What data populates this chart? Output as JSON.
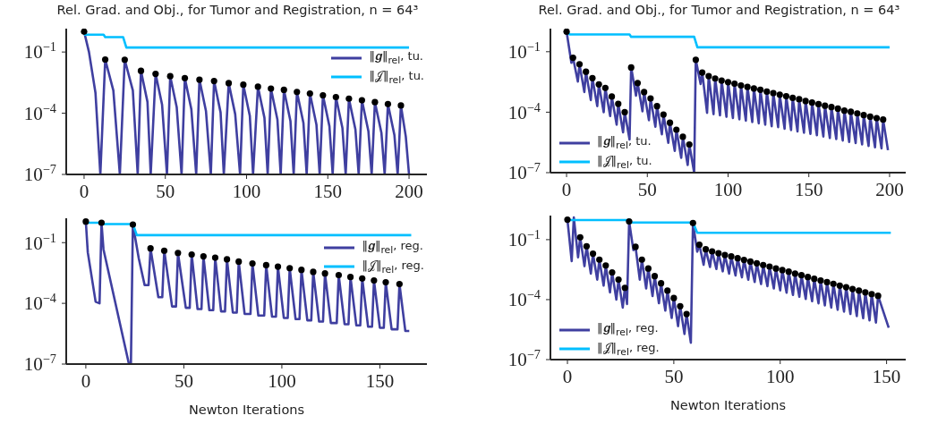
{
  "chart_data": [
    {
      "type": "line",
      "title": "Rel. Grad. and Obj., for Tumor and Registration, n = 64³",
      "xlim": [
        -11,
        211
      ],
      "xticks": [
        0,
        50,
        100,
        150,
        200
      ],
      "ylim": [
        1e-07,
        1.4
      ],
      "yticks": [
        {
          "value": 1e-07,
          "label": "10$^{−7}$"
        },
        {
          "value": 0.0001,
          "label": "10$^{−4}$"
        },
        {
          "value": 0.1,
          "label": "10$^{−1}$"
        }
      ],
      "log": "y",
      "legend": "top right",
      "series": [
        {
          "name": "‖𝒈‖$_{rel}$, tu.",
          "color": "#3f3fa0",
          "x": [
            0,
            3,
            7,
            10,
            13,
            18,
            22,
            25,
            30,
            33,
            35,
            39,
            41,
            44,
            48,
            51,
            53,
            57,
            60,
            62,
            66,
            69,
            71,
            75,
            78,
            80,
            84,
            86,
            89,
            93,
            96,
            98,
            102,
            104,
            107,
            111,
            113,
            115,
            119,
            121,
            123,
            127,
            129,
            131,
            135,
            137,
            139,
            143,
            145,
            147,
            151,
            153,
            155,
            159,
            161,
            163,
            167,
            169,
            171,
            175,
            177,
            179,
            183,
            185,
            187,
            191,
            193,
            195,
            198,
            200
          ],
          "values": [
            1,
            0.1,
            0.001,
            1e-07,
            0.043,
            0.0013,
            1e-07,
            0.042,
            0.0013,
            1e-07,
            0.012,
            0.00036,
            1e-07,
            0.0085,
            0.00026,
            1e-07,
            0.0065,
            0.0002,
            1e-07,
            0.0053,
            0.00016,
            1e-07,
            0.0044,
            0.00013,
            1e-07,
            0.0038,
            0.00011,
            1e-07,
            0.003,
            9e-05,
            1e-07,
            0.0025,
            7.5e-05,
            1e-07,
            0.002,
            6e-05,
            1e-07,
            0.0016,
            4.8e-05,
            1e-07,
            0.0014,
            4.2e-05,
            1e-07,
            0.0011,
            3.3e-05,
            1e-07,
            0.00093,
            2.8e-05,
            1e-07,
            0.00076,
            2.3e-05,
            1e-07,
            0.00062,
            1.9e-05,
            1e-07,
            0.00052,
            1.6e-05,
            1e-07,
            0.00043,
            1.3e-05,
            1e-07,
            0.00035,
            1.1e-05,
            1e-07,
            0.00028,
            8.4e-06,
            1e-07,
            0.00024,
            7.2e-06,
            1e-07
          ]
        },
        {
          "name": "‖𝒥‖$_{rel}$, tu.",
          "color": "#00bfff",
          "x": [
            0,
            12,
            13,
            24,
            26,
            200
          ],
          "values": [
            0.71,
            0.71,
            0.54,
            0.54,
            0.166,
            0.166
          ]
        },
        {
          "type": "scatter",
          "color": "#000000",
          "marker": "circle",
          "x": [
            0,
            13,
            25,
            35,
            44,
            53,
            62,
            71,
            80,
            89,
            98,
            107,
            115,
            123,
            131,
            139,
            147,
            155,
            163,
            171,
            179,
            187,
            195
          ],
          "values": [
            1,
            0.043,
            0.042,
            0.012,
            0.0085,
            0.0065,
            0.0053,
            0.0044,
            0.0038,
            0.003,
            0.0025,
            0.002,
            0.0016,
            0.0014,
            0.0011,
            0.00093,
            0.00076,
            0.00062,
            0.00052,
            0.00043,
            0.00035,
            0.00028,
            0.00024
          ]
        }
      ]
    },
    {
      "type": "line",
      "title": "Rel. Grad. and Obj., for Tumor and Registration, n = 64³",
      "xlim": [
        -10,
        210
      ],
      "xticks": [
        0,
        50,
        100,
        150,
        200
      ],
      "ylim": [
        1e-07,
        1.4
      ],
      "yticks": [
        {
          "value": 1e-07,
          "label": "10$^{−7}$"
        },
        {
          "value": 0.0001,
          "label": "10$^{−4}$"
        },
        {
          "value": 0.1,
          "label": "10$^{−1}$"
        }
      ],
      "log": "y",
      "legend": "bottom left",
      "series": [
        {
          "name": "‖𝒈‖$_{rel}$, tu.",
          "color": "#3f3fa0",
          "x": [
            0,
            3,
            4,
            7,
            8,
            11,
            12,
            15,
            16,
            19,
            20,
            23,
            24,
            27,
            28,
            31,
            32,
            35,
            36,
            39,
            40,
            43,
            44,
            47,
            48,
            51,
            52,
            55,
            56,
            59,
            60,
            63,
            64,
            67,
            68,
            71,
            72,
            75,
            76,
            79,
            80,
            83,
            84,
            87,
            88,
            91,
            92,
            95,
            96,
            99,
            100,
            103,
            104,
            107,
            108,
            111,
            112,
            115,
            116,
            119,
            120,
            123,
            124,
            127,
            128,
            131,
            132,
            135,
            136,
            139,
            140,
            143,
            144,
            147,
            148,
            151,
            152,
            155,
            156,
            159,
            160,
            163,
            164,
            167,
            168,
            171,
            172,
            175,
            176,
            179,
            180,
            183,
            184,
            187,
            188,
            191,
            192,
            195,
            196,
            199
          ],
          "values": [
            1,
            0.028,
            0.05,
            0.0033,
            0.024,
            0.001,
            0.0102,
            0.0004,
            0.0049,
            0.0002,
            0.0024,
            0.0001,
            0.0016,
            6.4e-05,
            0.0006,
            2.4e-05,
            0.00026,
            1e-05,
            0.0001,
            4.4e-06,
            0.0166,
            0.00066,
            0.0028,
            0.00011,
            0.001,
            4e-05,
            0.00048,
            1.9e-05,
            0.0002,
            8e-06,
            7.6e-05,
            3e-06,
            3e-05,
            1.2e-06,
            1.35e-05,
            5.4e-07,
            6e-06,
            2.4e-07,
            2.5e-06,
            1e-07,
            0.04,
            0.0025,
            0.0093,
            9.3e-05,
            0.0062,
            8e-05,
            0.0047,
            6.9e-05,
            0.0037,
            5.9e-05,
            0.0031,
            5.1e-05,
            0.0026,
            4.4e-05,
            0.0021,
            3.8e-05,
            0.0018,
            3.2e-05,
            0.0015,
            2.8e-05,
            0.0013,
            2.4e-05,
            0.00105,
            2e-05,
            0.00089,
            1.8e-05,
            0.00074,
            1.5e-05,
            0.00062,
            1.3e-05,
            0.00051,
            1.1e-05,
            0.00044,
            9.6e-06,
            0.00036,
            8.3e-06,
            0.0003,
            7.1e-06,
            0.00025,
            6.2e-06,
            0.00021,
            5.2e-06,
            0.00018,
            4.6e-06,
            0.00015,
            3.9e-06,
            0.00012,
            3.3e-06,
            0.000105,
            2.9e-06,
            8.7e-05,
            2.5e-06,
            7.2e-05,
            2.1e-06,
            6e-05,
            1.8e-06,
            5.1e-05,
            1.6e-06,
            4.3e-05,
            1.3e-06
          ]
        },
        {
          "name": "‖𝒥‖$_{rel}$, tu.",
          "color": "#00bfff",
          "x": [
            0,
            2,
            39,
            40,
            79,
            81,
            200
          ],
          "values": [
            1,
            0.72,
            0.72,
            0.55,
            0.55,
            0.166,
            0.166
          ]
        },
        {
          "type": "scatter",
          "color": "#000000",
          "marker": "circle",
          "x": [
            0,
            4,
            8,
            12,
            16,
            20,
            24,
            28,
            32,
            36,
            40,
            44,
            48,
            52,
            56,
            60,
            64,
            68,
            72,
            76,
            80,
            84,
            88,
            92,
            96,
            100,
            104,
            108,
            112,
            116,
            120,
            124,
            128,
            132,
            136,
            140,
            144,
            148,
            152,
            156,
            160,
            164,
            168,
            172,
            176,
            180,
            184,
            188,
            192,
            196
          ],
          "values": [
            1,
            0.05,
            0.024,
            0.0102,
            0.0049,
            0.0024,
            0.0016,
            0.0006,
            0.00026,
            0.0001,
            0.0166,
            0.0028,
            0.001,
            0.00048,
            0.0002,
            7.6e-05,
            3e-05,
            1.35e-05,
            6e-06,
            2.5e-06,
            0.04,
            0.0093,
            0.0062,
            0.0047,
            0.0037,
            0.0031,
            0.0026,
            0.0021,
            0.0018,
            0.0015,
            0.0013,
            0.00105,
            0.00089,
            0.00074,
            0.00062,
            0.00051,
            0.00044,
            0.00036,
            0.0003,
            0.00025,
            0.00021,
            0.00018,
            0.00015,
            0.00012,
            0.000105,
            8.7e-05,
            7.2e-05,
            6e-05,
            5.1e-05,
            4.3e-05
          ]
        }
      ]
    },
    {
      "type": "line",
      "xlabel": "Newton Iterations",
      "xlim": [
        -10,
        174
      ],
      "xticks": [
        0,
        50,
        100,
        150
      ],
      "ylim": [
        1e-07,
        1.6
      ],
      "yticks": [
        {
          "value": 1e-07,
          "label": "10$^{−7}$"
        },
        {
          "value": 0.0001,
          "label": "10$^{−4}$"
        },
        {
          "value": 0.1,
          "label": "10$^{−1}$"
        }
      ],
      "log": "y",
      "legend": "top right",
      "series": [
        {
          "name": "‖𝒈‖$_{rel}$, reg.",
          "color": "#3f3fa0",
          "x": [
            0,
            1,
            5,
            7,
            8,
            9,
            22,
            23,
            24,
            27,
            30,
            32,
            33,
            37,
            39,
            40,
            44,
            46,
            47,
            51,
            53,
            54,
            57,
            59,
            60,
            63,
            65,
            66,
            69,
            71,
            72,
            75,
            77,
            78,
            81,
            84,
            85,
            88,
            91,
            92,
            95,
            97,
            98,
            101,
            103,
            104,
            107,
            109,
            110,
            113,
            115,
            116,
            119,
            121,
            122,
            125,
            128,
            129,
            132,
            134,
            135,
            138,
            140,
            141,
            144,
            146,
            147,
            150,
            152,
            153,
            156,
            159,
            160,
            163,
            165
          ],
          "values": [
            1.1,
            0.033,
            0.00012,
            0.0001,
            0.96,
            0.047,
            1e-07,
            1e-07,
            0.78,
            0.017,
            0.0008,
            0.0008,
            0.052,
            0.0002,
            0.0002,
            0.04,
            7e-05,
            7e-05,
            0.031,
            6e-05,
            6e-05,
            0.026,
            5.2e-05,
            5.2e-05,
            0.021,
            4.6e-05,
            4.6e-05,
            0.018,
            4e-05,
            4e-05,
            0.015,
            3.5e-05,
            3.5e-05,
            0.0116,
            3e-05,
            3e-05,
            0.0093,
            2.5e-05,
            2.5e-05,
            0.0077,
            2.2e-05,
            2.2e-05,
            0.0065,
            1.9e-05,
            1.9e-05,
            0.0055,
            1.66e-05,
            1.66e-05,
            0.0045,
            1.45e-05,
            1.45e-05,
            0.0036,
            1.26e-05,
            1.26e-05,
            0.003,
            1.07e-05,
            1.07e-05,
            0.0025,
            9.3e-06,
            9.3e-06,
            0.002,
            8.1e-06,
            8.1e-06,
            0.0017,
            7e-06,
            7e-06,
            0.00135,
            6.2e-06,
            6.2e-06,
            0.0011,
            5.2e-06,
            5.2e-06,
            0.0009,
            4.3e-06,
            4.3e-06
          ]
        },
        {
          "name": "‖𝒥‖$_{rel}$, reg.",
          "color": "#00bfff",
          "x": [
            0,
            8,
            9,
            24,
            26,
            166
          ],
          "values": [
            0.96,
            0.96,
            0.83,
            0.83,
            0.235,
            0.235
          ]
        },
        {
          "type": "scatter",
          "color": "#000000",
          "marker": "circle",
          "x": [
            0,
            8,
            24,
            33,
            40,
            47,
            54,
            60,
            66,
            72,
            78,
            85,
            92,
            98,
            104,
            110,
            116,
            122,
            129,
            135,
            141,
            147,
            153,
            160
          ],
          "values": [
            1.1,
            0.96,
            0.78,
            0.052,
            0.04,
            0.031,
            0.026,
            0.021,
            0.018,
            0.015,
            0.0116,
            0.0093,
            0.0077,
            0.0065,
            0.0055,
            0.0045,
            0.0036,
            0.003,
            0.0025,
            0.002,
            0.0017,
            0.00135,
            0.0011,
            0.0009
          ]
        }
      ]
    },
    {
      "type": "line",
      "xlabel": "Newton Iterations",
      "xlim": [
        -8,
        159
      ],
      "xticks": [
        0,
        50,
        100,
        150
      ],
      "ylim": [
        1e-07,
        1.6
      ],
      "yticks": [
        {
          "value": 1e-07,
          "label": "10$^{−7}$"
        },
        {
          "value": 0.0001,
          "label": "10$^{−4}$"
        },
        {
          "value": 0.1,
          "label": "10$^{−1}$"
        }
      ],
      "log": "y",
      "legend": "bottom left",
      "series": [
        {
          "name": "‖𝒈‖$_{rel}$, reg.",
          "color": "#3f3fa0",
          "x": [
            0,
            2,
            3,
            5,
            6,
            8,
            9,
            11,
            12,
            14,
            15,
            17,
            18,
            20,
            21,
            23,
            24,
            26,
            27,
            28,
            29,
            31,
            32,
            34,
            35,
            37,
            38,
            40,
            41,
            43,
            44,
            46,
            47,
            49,
            50,
            52,
            53,
            55,
            56,
            58,
            59,
            61,
            62,
            64,
            65,
            67,
            68,
            70,
            71,
            73,
            74,
            76,
            77,
            79,
            80,
            82,
            83,
            85,
            86,
            88,
            89,
            91,
            92,
            94,
            95,
            97,
            98,
            100,
            101,
            103,
            104,
            106,
            107,
            109,
            110,
            112,
            113,
            115,
            116,
            118,
            119,
            121,
            122,
            124,
            125,
            127,
            128,
            130,
            131,
            133,
            134,
            136,
            137,
            139,
            140,
            142,
            143,
            145,
            146,
            151
          ],
          "values": [
            1,
            0.0085,
            1.3,
            0.013,
            0.13,
            0.0047,
            0.047,
            0.002,
            0.02,
            0.001,
            0.01,
            0.0005,
            0.0051,
            0.00023,
            0.0023,
            0.0001,
            0.001,
            4e-05,
            0.00039,
            6e-05,
            0.81,
            0.03,
            0.044,
            0.001,
            0.01,
            0.00036,
            0.0036,
            0.00015,
            0.0015,
            6.6e-05,
            0.00066,
            2.8e-05,
            0.00028,
            1.2e-05,
            0.00012,
            4.7e-06,
            4.7e-05,
            1.9e-06,
            1.9e-05,
            7e-07,
            0.68,
            0.025,
            0.056,
            0.0055,
            0.033,
            0.0043,
            0.026,
            0.0034,
            0.021,
            0.0026,
            0.017,
            0.002,
            0.0144,
            0.0016,
            0.0118,
            0.0013,
            0.0097,
            0.00098,
            0.008,
            0.00076,
            0.0066,
            0.0006,
            0.0054,
            0.00047,
            0.0045,
            0.00036,
            0.0036,
            0.00029,
            0.003,
            0.00022,
            0.0025,
            0.00017,
            0.002,
            0.000138,
            0.00166,
            0.000107,
            0.00135,
            8.3e-05,
            0.0011,
            6.5e-05,
            0.00091,
            5.1e-05,
            0.00075,
            4e-05,
            0.00062,
            3.1e-05,
            0.0005,
            2.5e-05,
            0.00042,
            1.9e-05,
            0.00034,
            1.5e-05,
            0.00028,
            1.17e-05,
            0.00023,
            9.1e-06,
            0.00019,
            7.1e-06,
            0.000155,
            3.9e-06
          ]
        },
        {
          "name": "‖𝒥‖$_{rel}$, reg.",
          "color": "#00bfff",
          "x": [
            0,
            29,
            30,
            59,
            61,
            152
          ],
          "values": [
            0.96,
            0.96,
            0.72,
            0.72,
            0.22,
            0.22
          ]
        },
        {
          "type": "scatter",
          "color": "#000000",
          "marker": "circle",
          "x": [
            0,
            6,
            9,
            12,
            15,
            18,
            21,
            24,
            27,
            29,
            32,
            35,
            38,
            41,
            44,
            47,
            50,
            53,
            56,
            59,
            62,
            65,
            68,
            71,
            74,
            77,
            80,
            83,
            86,
            89,
            92,
            95,
            98,
            101,
            104,
            107,
            110,
            113,
            116,
            119,
            122,
            125,
            128,
            131,
            134,
            137,
            140,
            143,
            146
          ],
          "values": [
            1,
            0.13,
            0.047,
            0.02,
            0.01,
            0.0051,
            0.0023,
            0.001,
            0.00039,
            0.81,
            0.044,
            0.01,
            0.0036,
            0.0015,
            0.00066,
            0.00028,
            0.00012,
            4.7e-05,
            1.9e-05,
            0.68,
            0.056,
            0.033,
            0.026,
            0.021,
            0.017,
            0.0144,
            0.0118,
            0.0097,
            0.008,
            0.0066,
            0.0054,
            0.0045,
            0.0036,
            0.003,
            0.0025,
            0.002,
            0.00166,
            0.00135,
            0.0011,
            0.00091,
            0.00075,
            0.00062,
            0.0005,
            0.00042,
            0.00034,
            0.00028,
            0.00023,
            0.00019,
            0.000155
          ]
        }
      ]
    }
  ]
}
